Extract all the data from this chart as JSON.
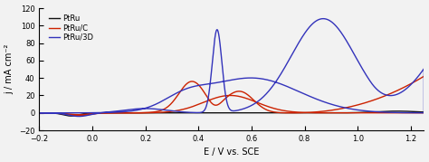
{
  "xlim": [
    -0.2,
    1.25
  ],
  "ylim": [
    -20,
    120
  ],
  "xlabel": "E / V vs. SCE",
  "ylabel": "j / mA cm⁻²",
  "yticks": [
    -20,
    0,
    20,
    40,
    60,
    80,
    100,
    120
  ],
  "xticks": [
    -0.2,
    0.0,
    0.2,
    0.4,
    0.6,
    0.8,
    1.0,
    1.2
  ],
  "legend": [
    "PtRu",
    "PtRu/C",
    "PtRu/3D"
  ],
  "colors": {
    "PtRu": "#111111",
    "PtRuC": "#cc2200",
    "PtRu3D": "#3333bb"
  },
  "background": "#f2f2f2"
}
